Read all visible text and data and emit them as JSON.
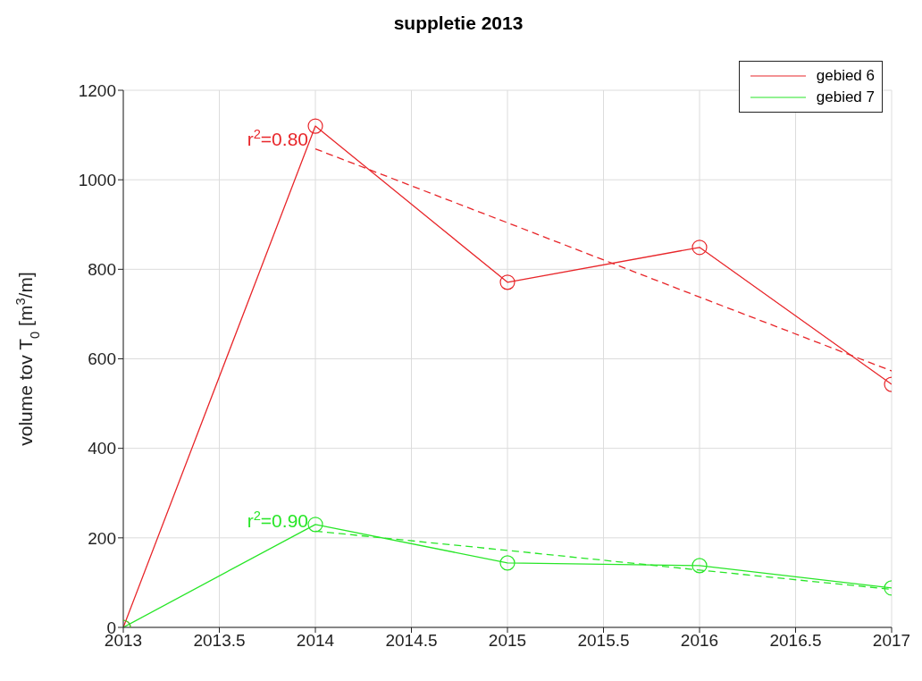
{
  "chart_data": {
    "type": "line",
    "title": "suppletie 2013",
    "ylabel": "volume tov T$_{0}$ [m$^{3}$/m]",
    "xlim": [
      2013,
      2017
    ],
    "xticks": [
      2013,
      2013.5,
      2014,
      2014.5,
      2015,
      2015.5,
      2016,
      2016.5,
      2017
    ],
    "ylim": [
      0,
      1200
    ],
    "yticks": [
      0,
      200,
      400,
      600,
      800,
      1000,
      1200
    ],
    "grid": true,
    "legend": "top right",
    "marker": "circle",
    "line_style": "solid",
    "x": [
      2013,
      2014,
      2015,
      2016,
      2017
    ],
    "series": [
      {
        "name": "gebied 6",
        "color": "#e8262a",
        "values": [
          0,
          1120,
          771,
          849,
          543
        ]
      },
      {
        "name": "gebied 7",
        "color": "#28e628",
        "values": [
          0,
          230,
          144,
          138,
          88
        ]
      },
      {
        "type": "line",
        "color": "#e8262a",
        "values": [
          null,
          1069,
          904,
          738,
          573
        ],
        "marker": "none",
        "line_style": "dashed"
      },
      {
        "type": "line",
        "color": "#28e628",
        "values": [
          null,
          215,
          172,
          128,
          85
        ],
        "marker": "none",
        "line_style": "dashed"
      }
    ],
    "annotations": [
      {
        "text": "r$^{2}$=0.80",
        "x": 2014,
        "y": 1069
      },
      {
        "text": "r$^{2}$=0.90",
        "x": 2014,
        "y": 215
      }
    ]
  }
}
